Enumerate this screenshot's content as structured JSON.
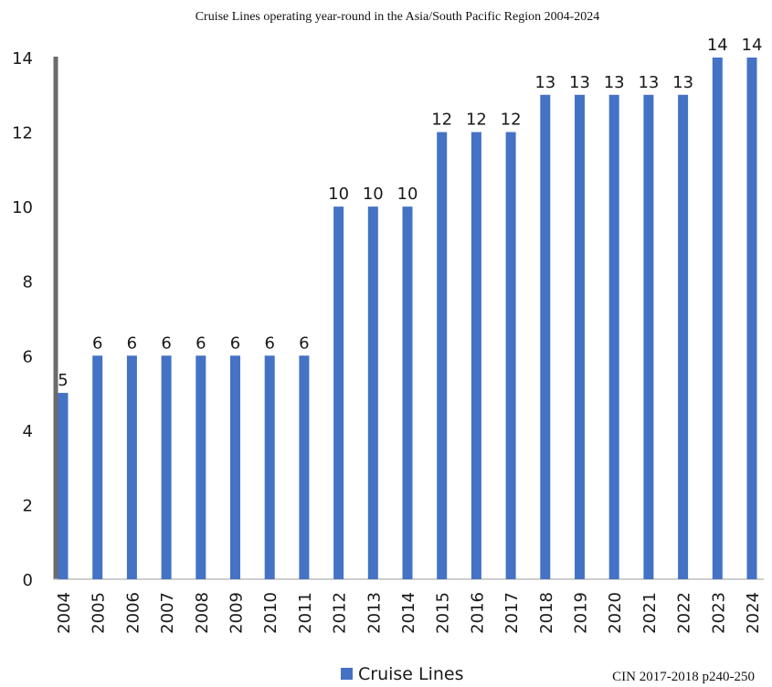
{
  "chart_data": {
    "type": "bar",
    "title": "Cruise Lines operating year-round in the Asia/South Pacific Region 2004-2024",
    "categories": [
      "2004",
      "2005",
      "2006",
      "2007",
      "2008",
      "2009",
      "2010",
      "2011",
      "2012",
      "2013",
      "2014",
      "2015",
      "2016",
      "2017",
      "2018",
      "2019",
      "2020",
      "2021",
      "2022",
      "2023",
      "2024"
    ],
    "series": [
      {
        "name": "Cruise Lines",
        "values": [
          5,
          6,
          6,
          6,
          6,
          6,
          6,
          6,
          10,
          10,
          10,
          12,
          12,
          12,
          13,
          13,
          13,
          13,
          13,
          14,
          14
        ],
        "color": "#4472c4"
      }
    ],
    "yticks": [
      "0",
      "2",
      "4",
      "6",
      "8",
      "10",
      "12",
      "14"
    ],
    "ylim": [
      0,
      14
    ],
    "xlabel": "",
    "ylabel": "",
    "grid": false,
    "data_labels": true,
    "legend_position": "bottom-center",
    "source_note": "CIN 2017-2018 p240-250"
  }
}
